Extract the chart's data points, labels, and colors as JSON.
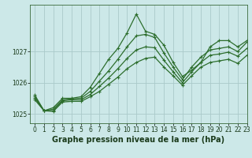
{
  "background_color": "#cce8e8",
  "grid_color": "#aacaca",
  "line_color": "#2d6e2d",
  "title": "Graphe pression niveau de la mer (hPa)",
  "xlim": [
    -0.5,
    23
  ],
  "ylim": [
    1024.7,
    1028.5
  ],
  "yticks": [
    1025,
    1026,
    1027
  ],
  "xticks": [
    0,
    1,
    2,
    3,
    4,
    5,
    6,
    7,
    8,
    9,
    10,
    11,
    12,
    13,
    14,
    15,
    16,
    17,
    18,
    19,
    20,
    21,
    22,
    23
  ],
  "series": [
    {
      "x": [
        0,
        1,
        2,
        3,
        4,
        5,
        6,
        7,
        8,
        9,
        10,
        11,
        12,
        13,
        14,
        15,
        16,
        17,
        18,
        19,
        20,
        21,
        22,
        23
      ],
      "y": [
        1025.6,
        1025.1,
        1025.2,
        1025.5,
        1025.5,
        1025.55,
        1025.85,
        1026.3,
        1026.75,
        1027.1,
        1027.6,
        1028.2,
        1027.65,
        1027.55,
        1027.2,
        1026.65,
        1026.2,
        1026.4,
        1026.65,
        1027.15,
        1027.35,
        1027.35,
        1027.15,
        1027.35
      ]
    },
    {
      "x": [
        0,
        1,
        2,
        3,
        4,
        5,
        6,
        7,
        8,
        9,
        10,
        11,
        12,
        13,
        14,
        15,
        16,
        17,
        18,
        19,
        20,
        21,
        22,
        23
      ],
      "y": [
        1025.55,
        1025.1,
        1025.15,
        1025.45,
        1025.48,
        1025.5,
        1025.72,
        1026.05,
        1026.38,
        1026.75,
        1027.15,
        1027.5,
        1027.55,
        1027.45,
        1026.95,
        1026.5,
        1026.1,
        1026.5,
        1026.82,
        1027.05,
        1027.1,
        1027.15,
        1027.0,
        1027.3
      ]
    },
    {
      "x": [
        0,
        1,
        2,
        3,
        4,
        5,
        6,
        7,
        8,
        9,
        10,
        11,
        12,
        13,
        14,
        15,
        16,
        17,
        18,
        19,
        20,
        21,
        22,
        23
      ],
      "y": [
        1025.5,
        1025.1,
        1025.1,
        1025.42,
        1025.45,
        1025.45,
        1025.62,
        1025.88,
        1026.15,
        1026.45,
        1026.78,
        1027.05,
        1027.15,
        1027.12,
        1026.72,
        1026.35,
        1026.0,
        1026.35,
        1026.65,
        1026.88,
        1026.92,
        1026.98,
        1026.85,
        1027.1
      ]
    },
    {
      "x": [
        0,
        1,
        2,
        3,
        4,
        5,
        6,
        7,
        8,
        9,
        10,
        11,
        12,
        13,
        14,
        15,
        16,
        17,
        18,
        19,
        20,
        21,
        22,
        23
      ],
      "y": [
        1025.45,
        1025.1,
        1025.08,
        1025.38,
        1025.4,
        1025.4,
        1025.55,
        1025.72,
        1025.95,
        1026.18,
        1026.45,
        1026.65,
        1026.78,
        1026.82,
        1026.5,
        1026.22,
        1025.92,
        1026.22,
        1026.5,
        1026.65,
        1026.7,
        1026.75,
        1026.62,
        1026.88
      ]
    }
  ],
  "title_fontsize": 7,
  "tick_fontsize": 5.5
}
